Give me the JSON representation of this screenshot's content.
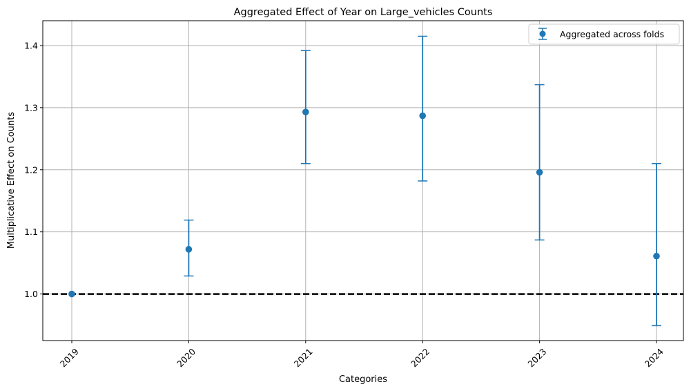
{
  "chart_data": {
    "type": "scatter",
    "title": "Aggregated Effect of Year on Large_vehicles Counts",
    "xlabel": "Categories",
    "ylabel": "Multiplicative Effect on Counts",
    "categories": [
      "2019",
      "2020",
      "2021",
      "2022",
      "2023",
      "2024"
    ],
    "series": [
      {
        "name": "Aggregated across folds",
        "values": [
          1.0,
          1.072,
          1.293,
          1.287,
          1.196,
          1.061
        ],
        "lower": [
          1.0,
          1.029,
          1.21,
          1.182,
          1.087,
          0.949
        ],
        "upper": [
          1.0,
          1.119,
          1.392,
          1.415,
          1.337,
          1.21
        ]
      }
    ],
    "reference_line": 1.0,
    "ylim": [
      0.925,
      1.44
    ],
    "yticks": [
      "1.0",
      "1.1",
      "1.2",
      "1.3",
      "1.4"
    ],
    "grid": true,
    "legend_position": "top-right",
    "colors": {
      "series": "#1f77b4",
      "reference": "#000000",
      "grid": "#b0b0b0"
    }
  }
}
